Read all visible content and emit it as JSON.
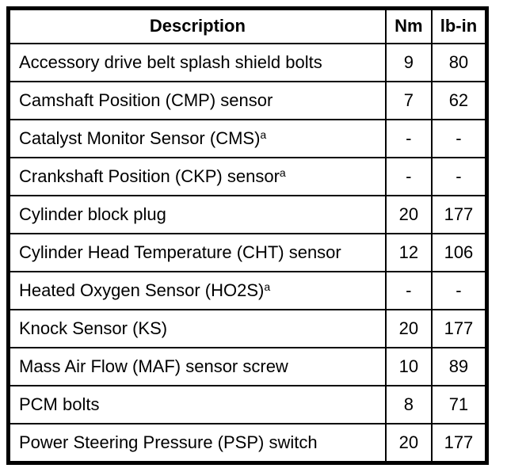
{
  "table": {
    "columns": {
      "description": "Description",
      "nm": "Nm",
      "lbin": "lb-in"
    },
    "rows": [
      {
        "description": "Accessory drive belt splash shield bolts",
        "sup": "",
        "nm": "9",
        "lbin": "80"
      },
      {
        "description": "Camshaft Position (CMP) sensor",
        "sup": "",
        "nm": "7",
        "lbin": "62"
      },
      {
        "description": "Catalyst Monitor Sensor (CMS)",
        "sup": "a",
        "nm": "-",
        "lbin": "-"
      },
      {
        "description": "Crankshaft Position (CKP) sensor",
        "sup": "a",
        "nm": "-",
        "lbin": "-"
      },
      {
        "description": "Cylinder block plug",
        "sup": "",
        "nm": "20",
        "lbin": "177"
      },
      {
        "description": "Cylinder Head Temperature (CHT) sensor",
        "sup": "",
        "nm": "12",
        "lbin": "106"
      },
      {
        "description": "Heated Oxygen Sensor (HO2S)",
        "sup": "a",
        "nm": "-",
        "lbin": "-"
      },
      {
        "description": "Knock Sensor (KS)",
        "sup": "",
        "nm": "20",
        "lbin": "177"
      },
      {
        "description": "Mass Air Flow (MAF) sensor screw",
        "sup": "",
        "nm": "10",
        "lbin": "89"
      },
      {
        "description": "PCM bolts",
        "sup": "",
        "nm": "8",
        "lbin": "71"
      },
      {
        "description": "Power Steering Pressure (PSP) switch",
        "sup": "",
        "nm": "20",
        "lbin": "177"
      }
    ],
    "colors": {
      "border": "#000000",
      "background": "#ffffff",
      "text": "#000000"
    }
  }
}
